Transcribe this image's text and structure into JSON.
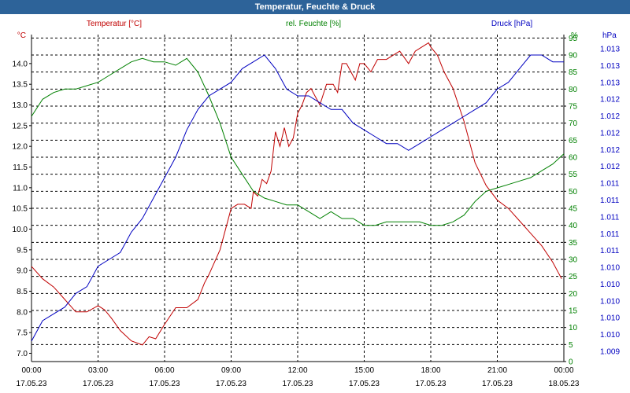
{
  "window": {
    "title": "Temperatur, Feuchte & Druck"
  },
  "colors": {
    "temperature": "#c00000",
    "humidity": "#008000",
    "pressure": "#0000c0",
    "axis": "#000000",
    "grid": "#000000"
  },
  "chart_data": {
    "type": "line",
    "title": "Temperatur, Feuchte & Druck",
    "x_ticks": [
      {
        "time": "00:00",
        "date": "17.05.23"
      },
      {
        "time": "03:00",
        "date": "17.05.23"
      },
      {
        "time": "06:00",
        "date": "17.05.23"
      },
      {
        "time": "09:00",
        "date": "17.05.23"
      },
      {
        "time": "12:00",
        "date": "17.05.23"
      },
      {
        "time": "15:00",
        "date": "17.05.23"
      },
      {
        "time": "18:00",
        "date": "17.05.23"
      },
      {
        "time": "21:00",
        "date": "17.05.23"
      },
      {
        "time": "00:00",
        "date": "18.05.23"
      }
    ],
    "x_range_hours": [
      0,
      24
    ],
    "axes": {
      "temperature": {
        "label": "Temperatur [°C]",
        "unit": "°C",
        "ylim": [
          6.8,
          14.7
        ],
        "ticks": [
          "7.0",
          "7.5",
          "8.0",
          "8.5",
          "9.0",
          "9.5",
          "10.0",
          "10.5",
          "11.0",
          "11.5",
          "12.0",
          "12.5",
          "13.0",
          "13.5",
          "14.0"
        ]
      },
      "humidity": {
        "label": "rel. Feuchte [%]",
        "unit": "%",
        "ylim": [
          0,
          96
        ],
        "ticks": [
          "0",
          "5",
          "10",
          "15",
          "20",
          "25",
          "30",
          "35",
          "40",
          "45",
          "50",
          "55",
          "60",
          "65",
          "70",
          "75",
          "80",
          "85",
          "90",
          "95"
        ]
      },
      "pressure": {
        "label": "Druck [hPa]",
        "unit": "hPa",
        "ticks": [
          "1.009",
          "1.010",
          "1.010",
          "1.010",
          "1.010",
          "1.010",
          "1.011",
          "1.011",
          "1.011",
          "1.011",
          "1.011",
          "1.012",
          "1.012",
          "1.012",
          "1.012",
          "1.012",
          "1.013",
          "1.013",
          "1.013"
        ]
      }
    },
    "series": [
      {
        "name": "Temperatur",
        "axis": "temperature",
        "x": [
          0,
          0.5,
          1,
          1.5,
          2,
          2.5,
          3,
          3.3,
          3.6,
          4,
          4.5,
          5,
          5.3,
          5.6,
          6,
          6.5,
          7,
          7.5,
          7.8,
          8,
          8.5,
          9,
          9.3,
          9.6,
          9.9,
          10,
          10.2,
          10.4,
          10.6,
          10.8,
          11,
          11.2,
          11.4,
          11.6,
          11.8,
          12,
          12.2,
          12.4,
          12.6,
          12.8,
          13,
          13.3,
          13.6,
          13.8,
          14,
          14.2,
          14.4,
          14.6,
          14.8,
          15,
          15.3,
          15.6,
          16,
          16.3,
          16.6,
          17,
          17.3,
          17.6,
          17.9,
          18,
          18.3,
          18.6,
          19,
          19.5,
          20,
          20.5,
          21,
          21.5,
          22,
          22.5,
          23,
          23.5,
          23.9
        ],
        "values": [
          9.1,
          8.8,
          8.6,
          8.3,
          8.0,
          8.0,
          8.15,
          8.05,
          7.85,
          7.55,
          7.3,
          7.2,
          7.4,
          7.35,
          7.7,
          8.1,
          8.1,
          8.3,
          8.7,
          8.9,
          9.5,
          10.5,
          10.6,
          10.6,
          10.5,
          10.9,
          10.8,
          11.2,
          11.1,
          11.4,
          12.35,
          12.0,
          12.45,
          12.0,
          12.2,
          12.8,
          13.0,
          13.3,
          13.4,
          13.2,
          13.0,
          13.5,
          13.5,
          13.3,
          14.0,
          14.0,
          13.8,
          13.6,
          14.0,
          14.0,
          13.8,
          14.1,
          14.1,
          14.2,
          14.3,
          14.0,
          14.3,
          14.4,
          14.5,
          14.4,
          14.2,
          13.8,
          13.4,
          12.6,
          11.6,
          11.05,
          10.7,
          10.5,
          10.2,
          9.9,
          9.6,
          9.2,
          8.8
        ]
      },
      {
        "name": "rel. Feuchte",
        "axis": "humidity",
        "x": [
          0,
          0.5,
          1,
          1.5,
          2,
          2.5,
          3,
          3.5,
          4,
          4.5,
          5,
          5.5,
          6,
          6.5,
          7,
          7.5,
          8,
          8.5,
          9,
          9.5,
          10,
          10.5,
          11,
          11.5,
          12,
          12.5,
          13,
          13.5,
          14,
          14.5,
          15,
          15.5,
          16,
          16.5,
          17,
          17.5,
          18,
          18.5,
          19,
          19.5,
          20,
          20.5,
          21,
          21.5,
          22,
          22.5,
          23,
          23.5,
          24
        ],
        "values": [
          72,
          77,
          79,
          80,
          80,
          81,
          82,
          84,
          86,
          88,
          89,
          88,
          88,
          87,
          89,
          85,
          78,
          70,
          60,
          55,
          50,
          48,
          47,
          46,
          46,
          44,
          42,
          44,
          42,
          42,
          40,
          40,
          41,
          41,
          41,
          41,
          40,
          40,
          41,
          43,
          47,
          50,
          51,
          52,
          53,
          54,
          56,
          58,
          61
        ]
      },
      {
        "name": "Druck",
        "axis": "pressure",
        "x": [
          0,
          0.5,
          1,
          1.5,
          2,
          2.5,
          3,
          3.5,
          4,
          4.5,
          5,
          5.5,
          6,
          6.5,
          7,
          7.5,
          8,
          8.5,
          9,
          9.5,
          10,
          10.5,
          11,
          11.5,
          12,
          12.5,
          13,
          13.5,
          14,
          14.5,
          15,
          15.5,
          16,
          16.5,
          17,
          17.5,
          18,
          18.5,
          19,
          19.5,
          20,
          20.5,
          21,
          21.5,
          22,
          22.5,
          23,
          23.5,
          24
        ],
        "values": [
          1.009,
          1.0093,
          1.0094,
          1.0095,
          1.0097,
          1.0098,
          1.0101,
          1.0102,
          1.0103,
          1.0106,
          1.0108,
          1.0111,
          1.0114,
          1.0117,
          1.0121,
          1.0124,
          1.0126,
          1.0127,
          1.0128,
          1.013,
          1.0131,
          1.0132,
          1.013,
          1.0127,
          1.0126,
          1.0126,
          1.0125,
          1.0124,
          1.0124,
          1.0122,
          1.0121,
          1.012,
          1.0119,
          1.0119,
          1.0118,
          1.0119,
          1.012,
          1.0121,
          1.0122,
          1.0123,
          1.0124,
          1.0125,
          1.0127,
          1.0128,
          1.013,
          1.0132,
          1.0132,
          1.0131,
          1.0131
        ]
      }
    ]
  }
}
